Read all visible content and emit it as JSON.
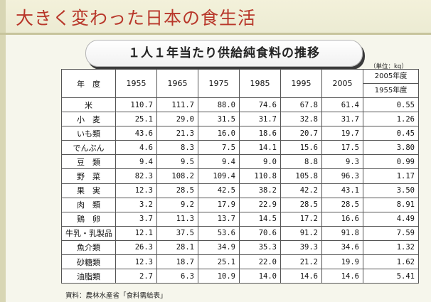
{
  "title": "大きく変わった日本の食生活",
  "subtitle": "１人１年当たり供給純食料の推移",
  "unit": "（単位：kg）",
  "table": {
    "header": {
      "year_label": "年　度",
      "years": [
        "1955",
        "1965",
        "1975",
        "1985",
        "1995",
        "2005"
      ],
      "ratio_top": "2005年度",
      "ratio_bottom": "1955年度"
    },
    "rows": [
      {
        "food": "米",
        "values": [
          "110.7",
          "111.7",
          "88.0",
          "74.6",
          "67.8",
          "61.4"
        ],
        "ratio": "0.55"
      },
      {
        "food": "小　麦",
        "values": [
          "25.1",
          "29.0",
          "31.5",
          "31.7",
          "32.8",
          "31.7"
        ],
        "ratio": "1.26"
      },
      {
        "food": "いも類",
        "values": [
          "43.6",
          "21.3",
          "16.0",
          "18.6",
          "20.7",
          "19.7"
        ],
        "ratio": "0.45"
      },
      {
        "food": "でんぷん",
        "values": [
          "4.6",
          "8.3",
          "7.5",
          "14.1",
          "15.6",
          "17.5"
        ],
        "ratio": "3.80"
      },
      {
        "food": "豆　類",
        "values": [
          "9.4",
          "9.5",
          "9.4",
          "9.0",
          "8.8",
          "9.3"
        ],
        "ratio": "0.99"
      },
      {
        "food": "野　菜",
        "values": [
          "82.3",
          "108.2",
          "109.4",
          "110.8",
          "105.8",
          "96.3"
        ],
        "ratio": "1.17"
      },
      {
        "food": "果　実",
        "values": [
          "12.3",
          "28.5",
          "42.5",
          "38.2",
          "42.2",
          "43.1"
        ],
        "ratio": "3.50"
      },
      {
        "food": "肉　類",
        "values": [
          "3.2",
          "9.2",
          "17.9",
          "22.9",
          "28.5",
          "28.5"
        ],
        "ratio": "8.91"
      },
      {
        "food": "鶏　卵",
        "values": [
          "3.7",
          "11.3",
          "13.7",
          "14.5",
          "17.2",
          "16.6"
        ],
        "ratio": "4.49"
      },
      {
        "food": "牛乳・乳製品",
        "values": [
          "12.1",
          "37.5",
          "53.6",
          "70.6",
          "91.2",
          "91.8"
        ],
        "ratio": "7.59"
      },
      {
        "food": "魚介類",
        "values": [
          "26.3",
          "28.1",
          "34.9",
          "35.3",
          "39.3",
          "34.6"
        ],
        "ratio": "1.32"
      },
      {
        "food": "砂糖類",
        "values": [
          "12.3",
          "18.7",
          "25.1",
          "22.0",
          "21.2",
          "19.9"
        ],
        "ratio": "1.62"
      },
      {
        "food": "油脂類",
        "values": [
          "2.7",
          "6.3",
          "10.9",
          "14.0",
          "14.6",
          "14.6"
        ],
        "ratio": "5.41"
      }
    ]
  },
  "source": "資料：農林水産省「食料需給表」",
  "colors": {
    "title_red": "#b8372a",
    "band": "#d8d6b4",
    "background": "#f6f6ec"
  }
}
